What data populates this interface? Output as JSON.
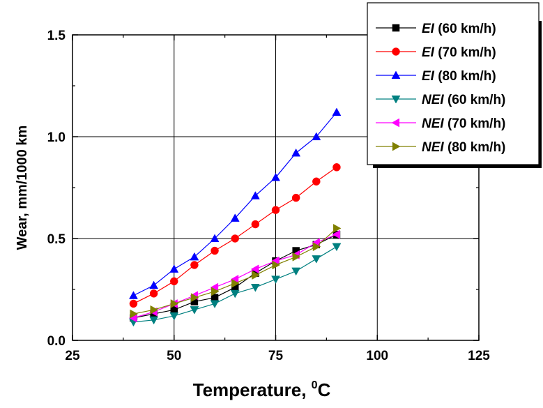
{
  "chart_data": {
    "type": "line",
    "xlabel": "Temperature, ",
    "xlabel_sup": "0",
    "xlabel_unit": "C",
    "ylabel": "Wear, mm/1000 km",
    "xlim": [
      25,
      125
    ],
    "ylim": [
      0,
      1.5
    ],
    "x_ticks": [
      "25",
      "50",
      "75",
      "100",
      "125"
    ],
    "y_ticks": [
      "0.0",
      "0.5",
      "1.0",
      "1.5"
    ],
    "grid": true,
    "legend_position": "top-right",
    "x": [
      40,
      45,
      50,
      55,
      60,
      65,
      70,
      75,
      80,
      85,
      90
    ],
    "series": [
      {
        "name_italic": "EI",
        "name_rest": " (60 km/h)",
        "color": "#000000",
        "marker": "square",
        "values": [
          0.11,
          0.13,
          0.15,
          0.19,
          0.21,
          0.26,
          0.33,
          0.39,
          0.44,
          0.47,
          0.52
        ]
      },
      {
        "name_italic": "EI",
        "name_rest": " (70 km/h)",
        "color": "#ff0000",
        "marker": "circle",
        "values": [
          0.18,
          0.23,
          0.29,
          0.37,
          0.44,
          0.5,
          0.57,
          0.64,
          0.7,
          0.78,
          0.85
        ]
      },
      {
        "name_italic": "EI",
        "name_rest": " (80 km/h)",
        "color": "#0000ff",
        "marker": "triangle-up",
        "values": [
          0.22,
          0.27,
          0.35,
          0.41,
          0.5,
          0.6,
          0.71,
          0.8,
          0.92,
          1.0,
          1.12
        ]
      },
      {
        "name_italic": "NEI",
        "name_rest": " (60 km/h)",
        "color": "#008080",
        "marker": "triangle-down",
        "values": [
          0.09,
          0.1,
          0.12,
          0.15,
          0.18,
          0.23,
          0.26,
          0.3,
          0.34,
          0.4,
          0.46
        ]
      },
      {
        "name_italic": "NEI",
        "name_rest": " (70 km/h)",
        "color": "#ff00ff",
        "marker": "triangle-left",
        "values": [
          0.11,
          0.14,
          0.18,
          0.22,
          0.26,
          0.3,
          0.35,
          0.39,
          0.42,
          0.48,
          0.52
        ]
      },
      {
        "name_italic": "NEI",
        "name_rest": " (80 km/h)",
        "color": "#808000",
        "marker": "triangle-right",
        "values": [
          0.13,
          0.15,
          0.18,
          0.21,
          0.24,
          0.28,
          0.32,
          0.37,
          0.41,
          0.46,
          0.55
        ]
      }
    ]
  }
}
